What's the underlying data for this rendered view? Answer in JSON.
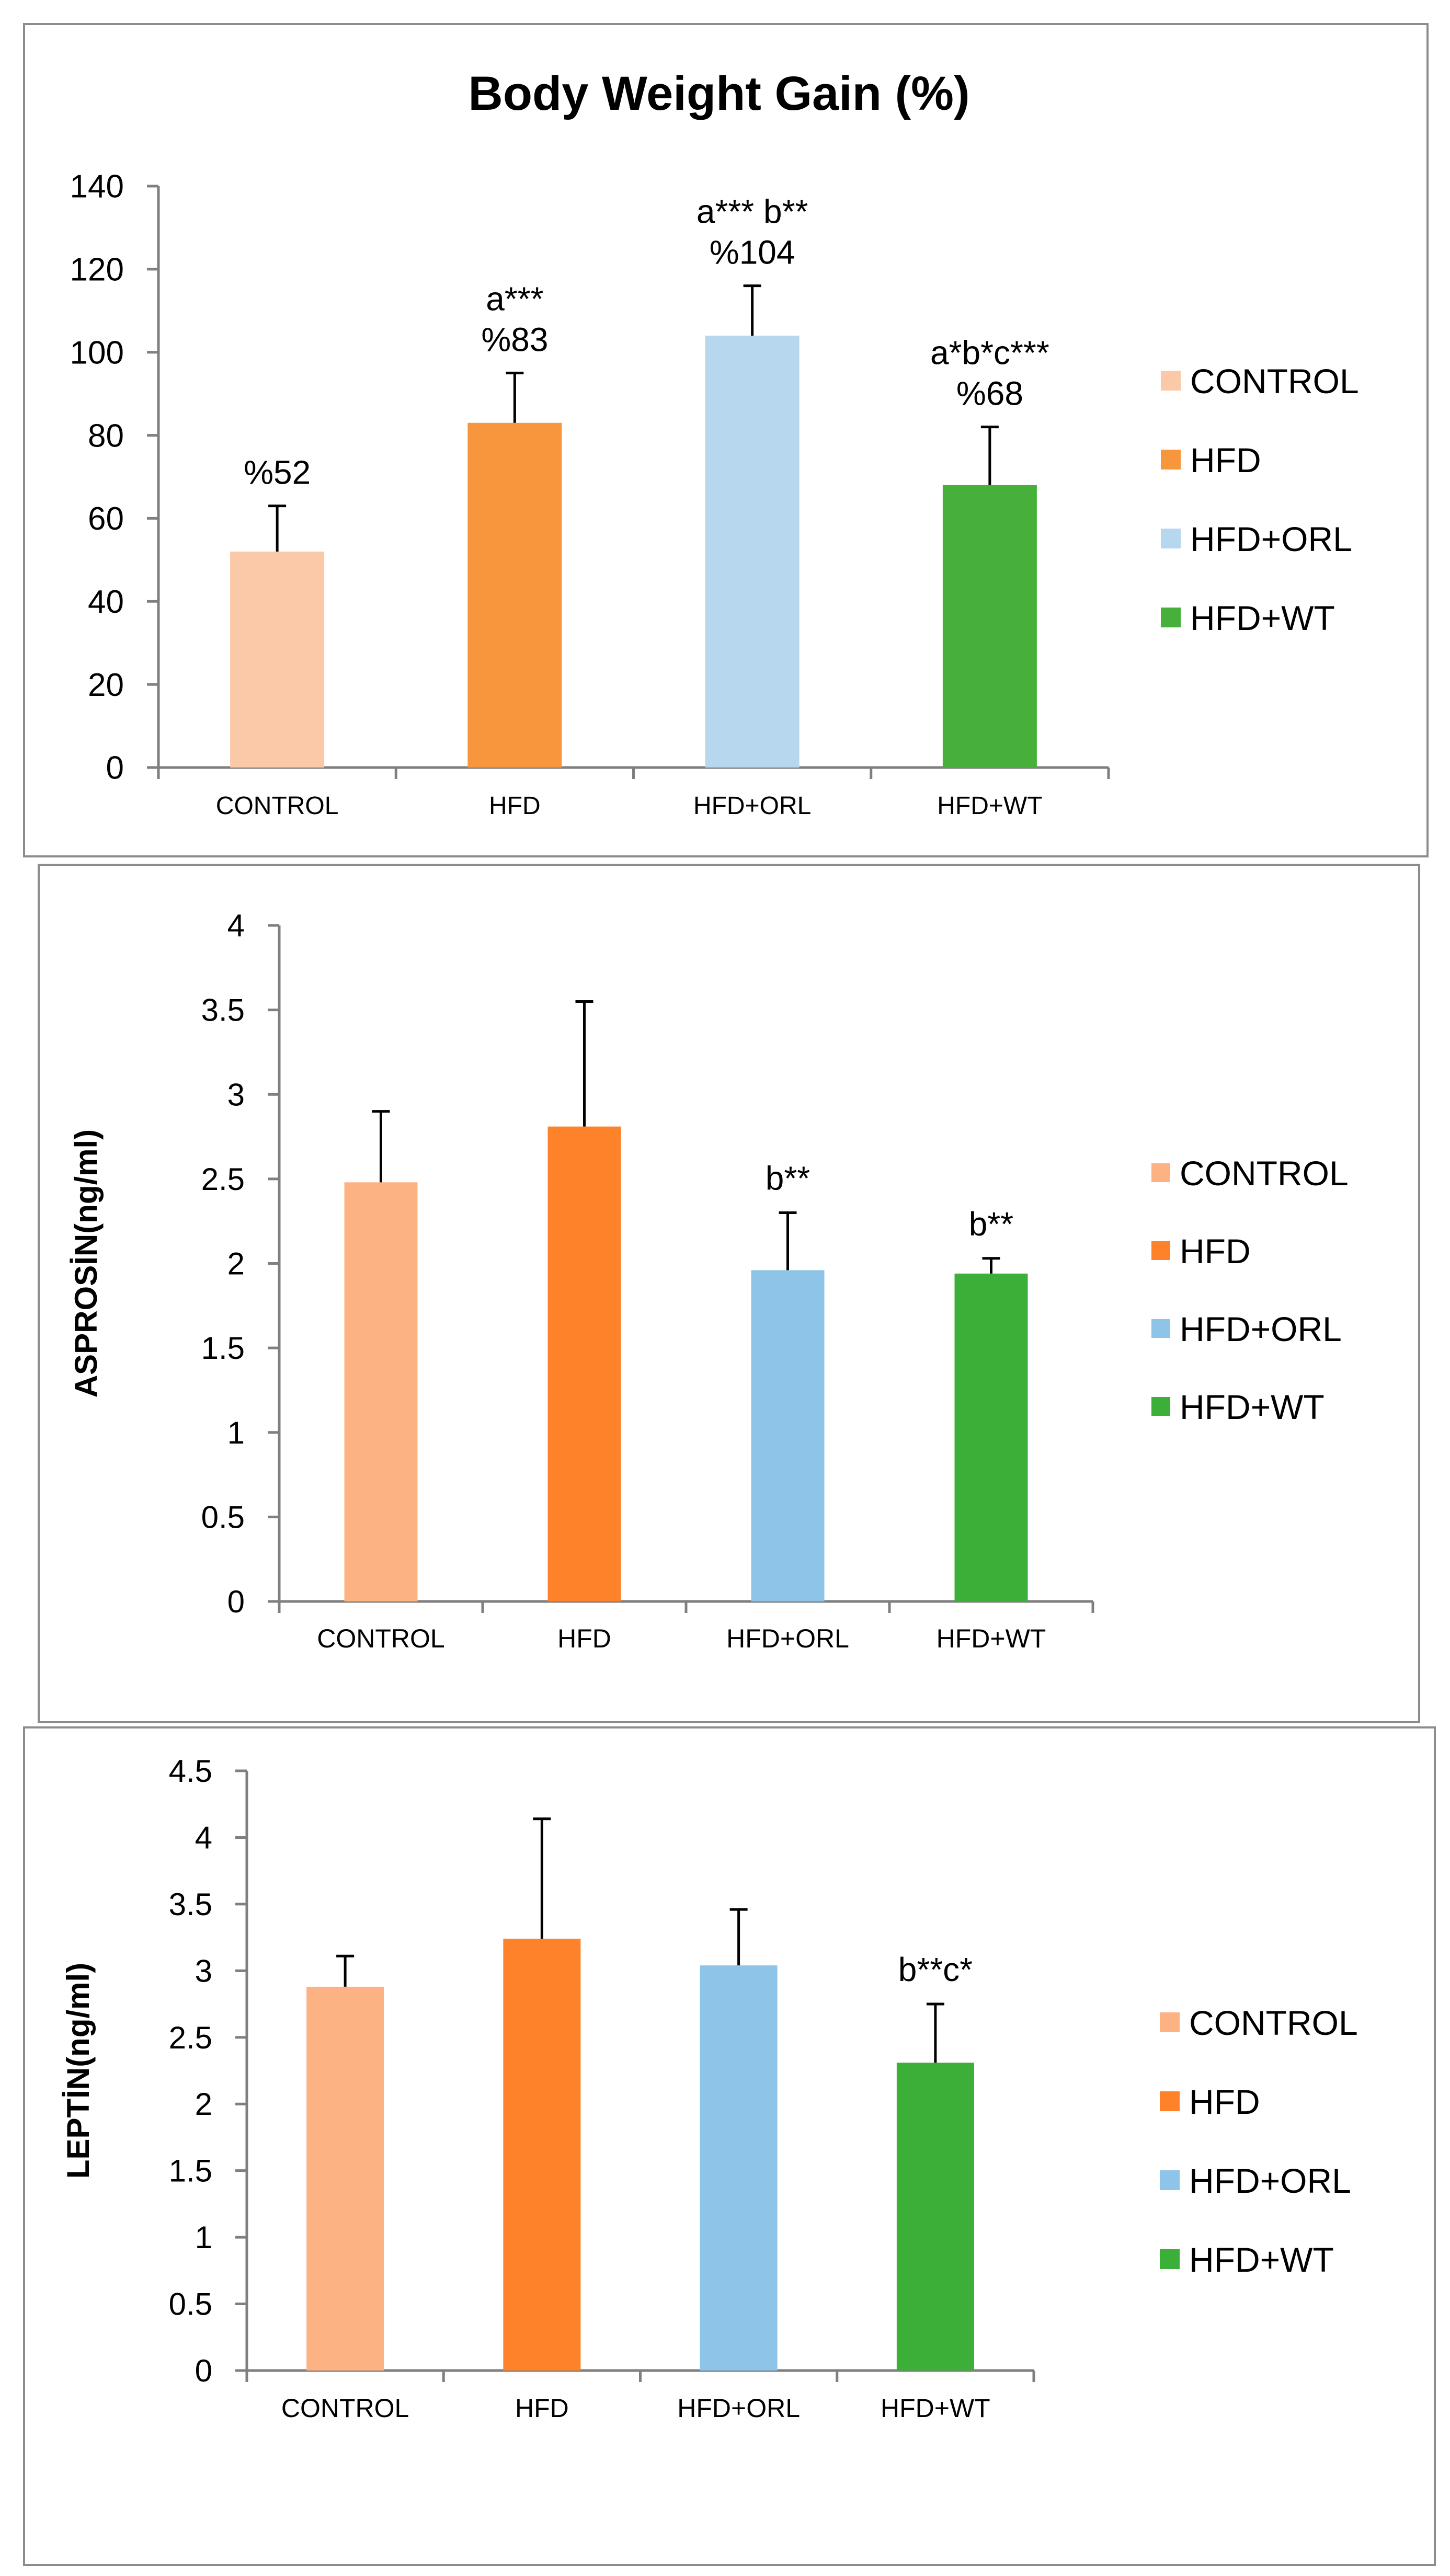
{
  "chart_data": [
    {
      "type": "bar",
      "title": "Body Weight Gain (%)",
      "xlabel": "",
      "ylabel": "",
      "ylim": [
        0,
        140
      ],
      "yticks": [
        "0",
        "20",
        "40",
        "60",
        "80",
        "100",
        "120",
        "140"
      ],
      "categories": [
        "CONTROL",
        "HFD",
        "HFD+ORL",
        "HFD+WT"
      ],
      "values": [
        52,
        83,
        104,
        68
      ],
      "errors": [
        11,
        12,
        12,
        14
      ],
      "colors": [
        "#fbc8a8",
        "#f8963e",
        "#b7d7ee",
        "#46b03a"
      ],
      "annotations": [
        [
          "%52"
        ],
        [
          "a***",
          "%83"
        ],
        [
          "a*** b**",
          "%104"
        ],
        [
          "a*b*c***",
          "%68"
        ]
      ],
      "legend": [
        "CONTROL",
        "HFD",
        "HFD+ORL",
        "HFD+WT"
      ],
      "legend_position": "right"
    },
    {
      "type": "bar",
      "title": "",
      "xlabel": "",
      "ylabel": "ASPROSİN(ng/ml)",
      "ylim": [
        0,
        4
      ],
      "yticks": [
        "0",
        "0.5",
        "1",
        "1.5",
        "2",
        "2.5",
        "3",
        "3.5",
        "4"
      ],
      "categories": [
        "CONTROL",
        "HFD",
        "HFD+ORL",
        "HFD+WT"
      ],
      "values": [
        2.48,
        2.81,
        1.96,
        1.94
      ],
      "errors": [
        0.42,
        0.74,
        0.34,
        0.09
      ],
      "colors": [
        "#fdb284",
        "#fd8229",
        "#8ec4e8",
        "#3caf38"
      ],
      "annotations": [
        [],
        [],
        [
          "b**"
        ],
        [
          "b**"
        ]
      ],
      "legend": [
        "CONTROL",
        "HFD",
        "HFD+ORL",
        "HFD+WT"
      ],
      "legend_position": "right"
    },
    {
      "type": "bar",
      "title": "",
      "xlabel": "",
      "ylabel": "LEPTİN(ng/ml)",
      "ylim": [
        0,
        4.5
      ],
      "yticks": [
        "0",
        "0.5",
        "1",
        "1.5",
        "2",
        "2.5",
        "3",
        "3.5",
        "4",
        "4.5"
      ],
      "categories": [
        "CONTROL",
        "HFD",
        "HFD+ORL",
        "HFD+WT"
      ],
      "values": [
        2.88,
        3.24,
        3.04,
        2.31
      ],
      "errors": [
        0.23,
        0.9,
        0.42,
        0.44
      ],
      "colors": [
        "#fdb284",
        "#fd8229",
        "#8ec4e8",
        "#3caf38"
      ],
      "annotations": [
        [],
        [],
        [],
        [
          "b**c*"
        ]
      ],
      "legend": [
        "CONTROL",
        "HFD",
        "HFD+ORL",
        "HFD+WT"
      ],
      "legend_position": "right"
    }
  ]
}
